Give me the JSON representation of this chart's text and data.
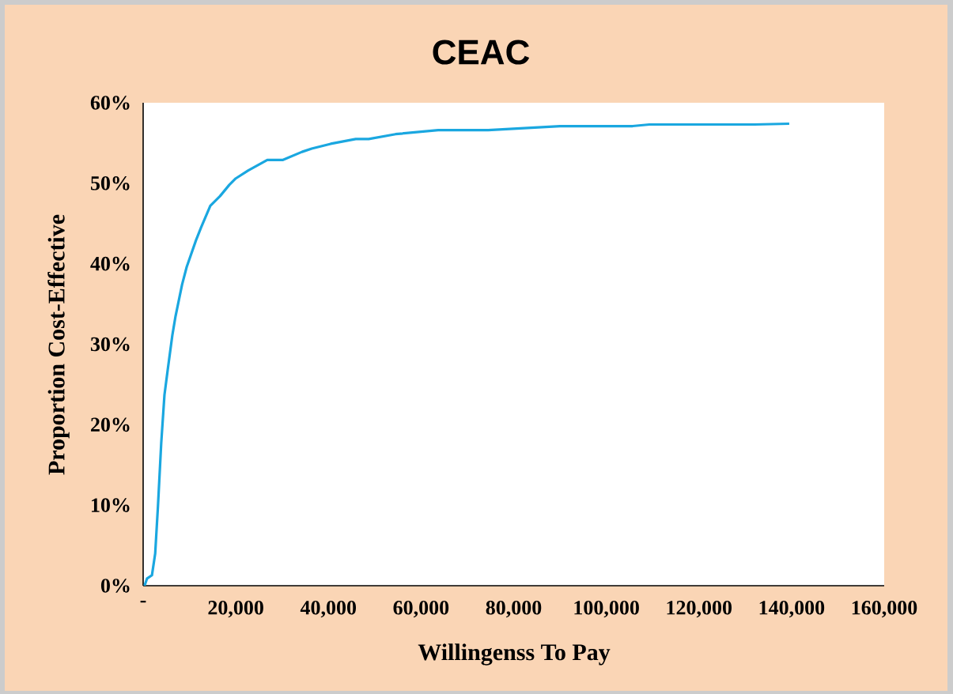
{
  "chart_data": {
    "type": "line",
    "title": "CEAC",
    "xlabel": "Willingenss To Pay",
    "ylabel": "Proportion Cost-Effective",
    "x": [
      300,
      850,
      1900,
      2600,
      3200,
      3900,
      4600,
      5300,
      6300,
      7000,
      8400,
      9400,
      11400,
      12500,
      14500,
      16600,
      18600,
      20000,
      22700,
      26800,
      30200,
      34300,
      36400,
      40500,
      45900,
      48700,
      54500,
      63700,
      74500,
      90000,
      105700,
      109300,
      132000,
      139500
    ],
    "values": [
      0,
      0.9,
      1.3,
      4.0,
      9.9,
      17.7,
      23.7,
      26.8,
      31.1,
      33.5,
      37.4,
      39.6,
      42.9,
      44.5,
      47.2,
      48.4,
      49.8,
      50.6,
      51.6,
      52.9,
      52.9,
      53.9,
      54.3,
      54.9,
      55.5,
      55.5,
      56.1,
      56.6,
      56.6,
      57.1,
      57.1,
      57.3,
      57.3,
      57.4
    ],
    "color": "#1aa7e0",
    "xlim": [
      0,
      160000
    ],
    "ylim": [
      0,
      60
    ],
    "xticks": [
      {
        "value": 0,
        "label": "-"
      },
      {
        "value": 20000,
        "label": "20,000"
      },
      {
        "value": 40000,
        "label": "40,000"
      },
      {
        "value": 60000,
        "label": "60,000"
      },
      {
        "value": 80000,
        "label": "80,000"
      },
      {
        "value": 100000,
        "label": "100,000"
      },
      {
        "value": 120000,
        "label": "120,000"
      },
      {
        "value": 140000,
        "label": "140,000"
      },
      {
        "value": 160000,
        "label": "160,000"
      }
    ],
    "yticks": [
      {
        "value": 0,
        "label": "0%"
      },
      {
        "value": 10,
        "label": "10%"
      },
      {
        "value": 20,
        "label": "20%"
      },
      {
        "value": 30,
        "label": "30%"
      },
      {
        "value": 40,
        "label": "40%"
      },
      {
        "value": 50,
        "label": "50%"
      },
      {
        "value": 60,
        "label": "60%"
      }
    ]
  }
}
